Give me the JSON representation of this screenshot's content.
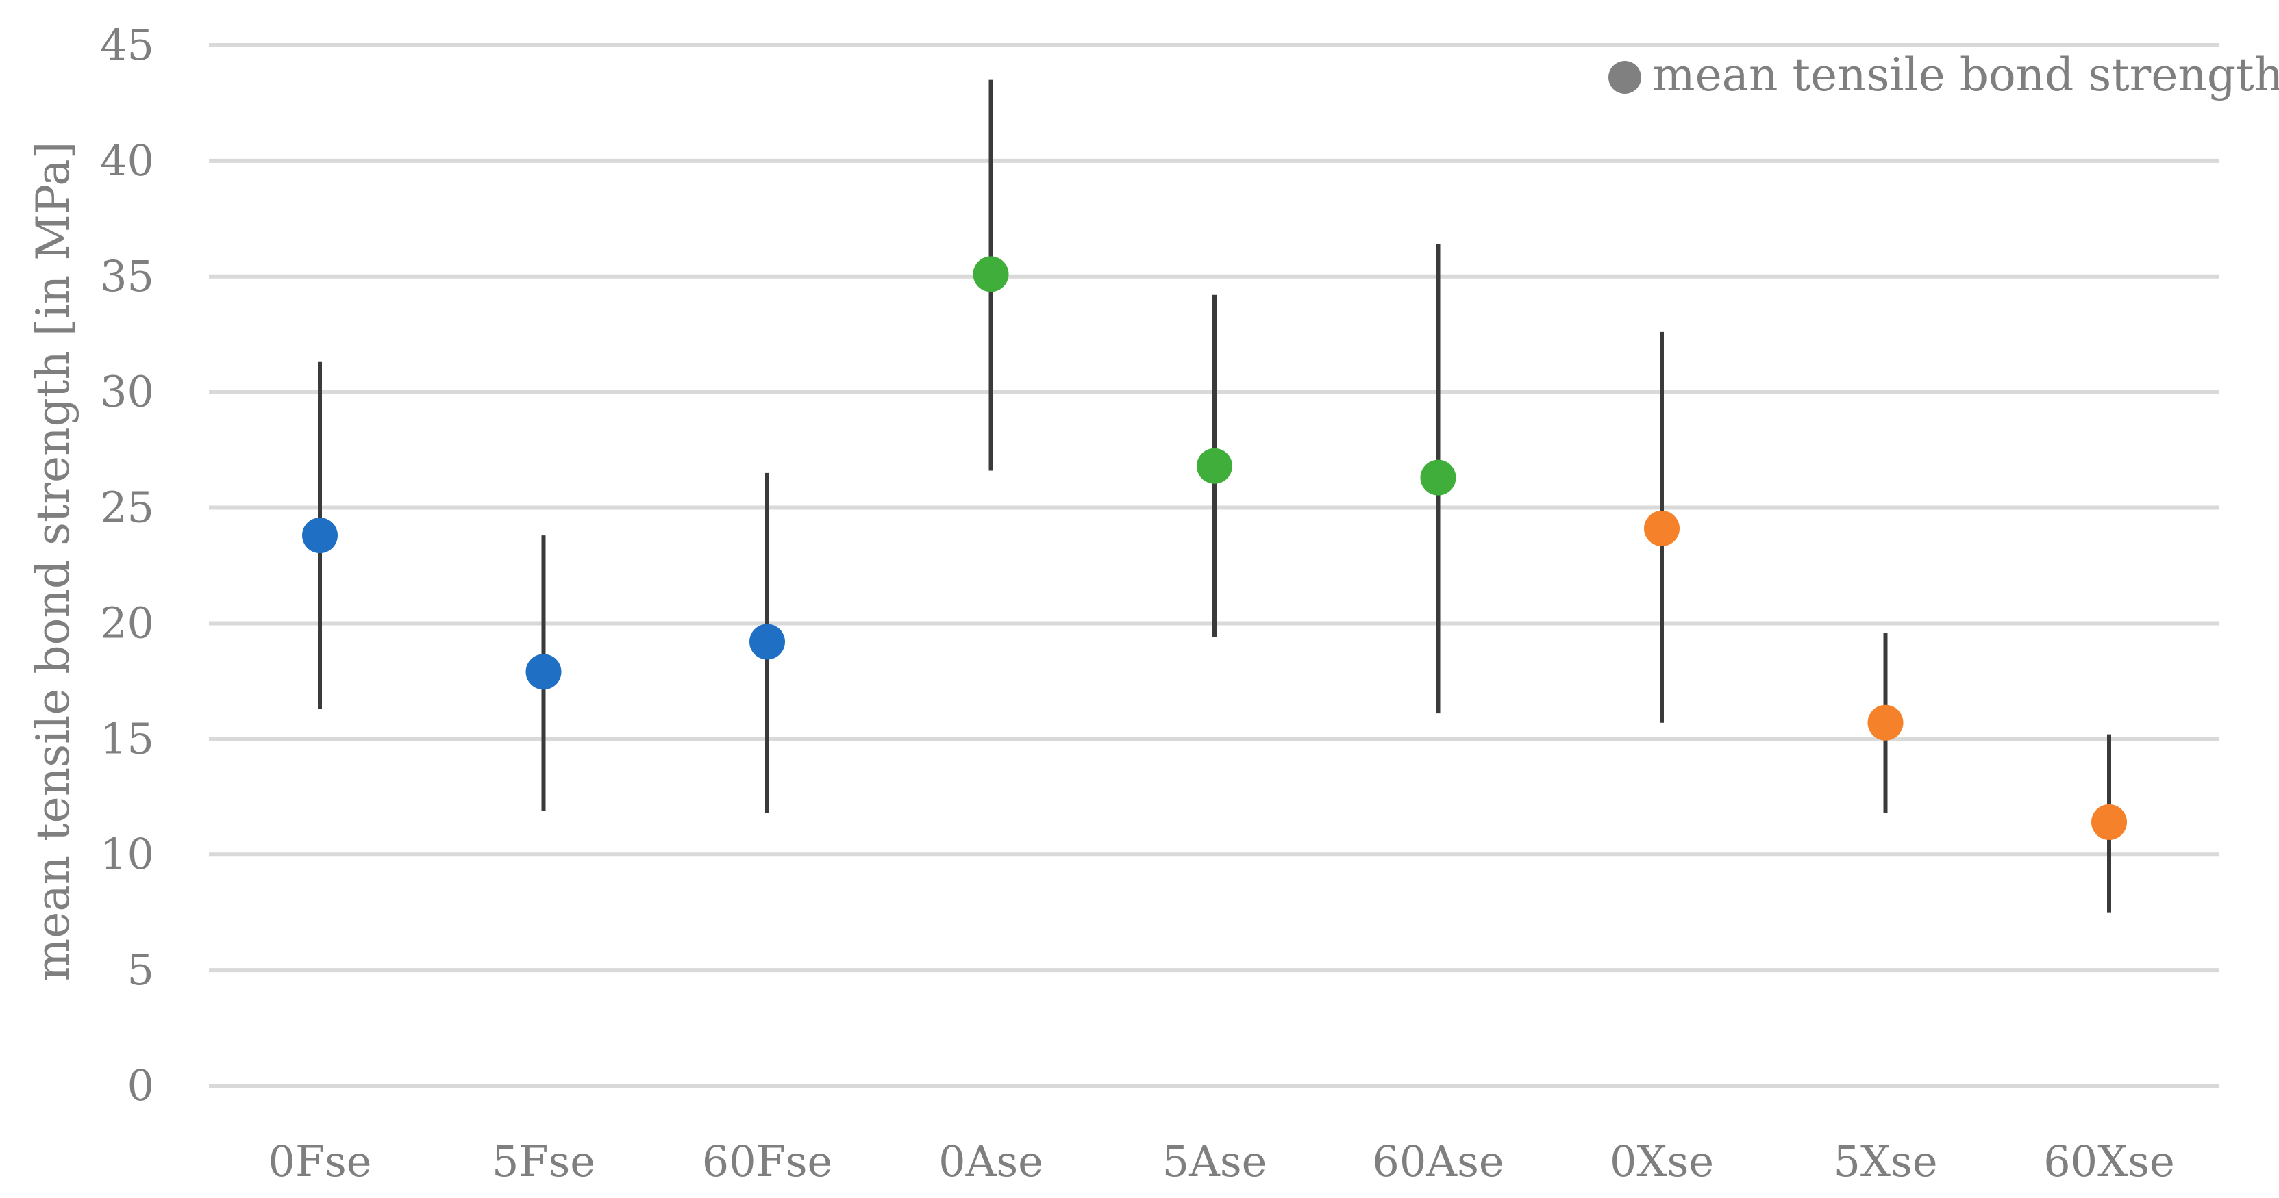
{
  "chart_data": {
    "type": "scatter",
    "categories": [
      "0Fse",
      "5Fse",
      "60Fse",
      "0Ase",
      "5Ase",
      "60Ase",
      "0Xse",
      "5Xse",
      "60Xse"
    ],
    "series": [
      {
        "name": "mean tensile bond strength",
        "values": [
          23.8,
          17.9,
          19.2,
          35.1,
          26.8,
          26.3,
          24.1,
          15.7,
          11.4
        ],
        "error_low": [
          16.3,
          11.9,
          11.8,
          26.6,
          19.4,
          16.1,
          15.7,
          11.8,
          7.5
        ],
        "error_high": [
          31.3,
          23.8,
          26.5,
          43.5,
          34.2,
          36.4,
          32.6,
          19.6,
          15.2
        ],
        "point_colors": [
          "#1f6fc5",
          "#1f6fc5",
          "#1f6fc5",
          "#3fae3a",
          "#3fae3a",
          "#3fae3a",
          "#f5822a",
          "#f5822a",
          "#f5822a"
        ]
      }
    ],
    "title": "",
    "xlabel": "",
    "ylabel": "mean tensile bond strength [in MPa]",
    "ylim": [
      0,
      45
    ],
    "yticks": [
      "0",
      "5",
      "10",
      "15",
      "20",
      "25",
      "30",
      "35",
      "40",
      "45"
    ],
    "grid": true,
    "legend": {
      "position": "top-right",
      "marker_color": "#808080",
      "label": "mean tensile bond strength"
    },
    "colors": {
      "gridline": "#d9d9d9",
      "errorbar": "#3a3a3a",
      "text": "#7f7f7f"
    }
  }
}
